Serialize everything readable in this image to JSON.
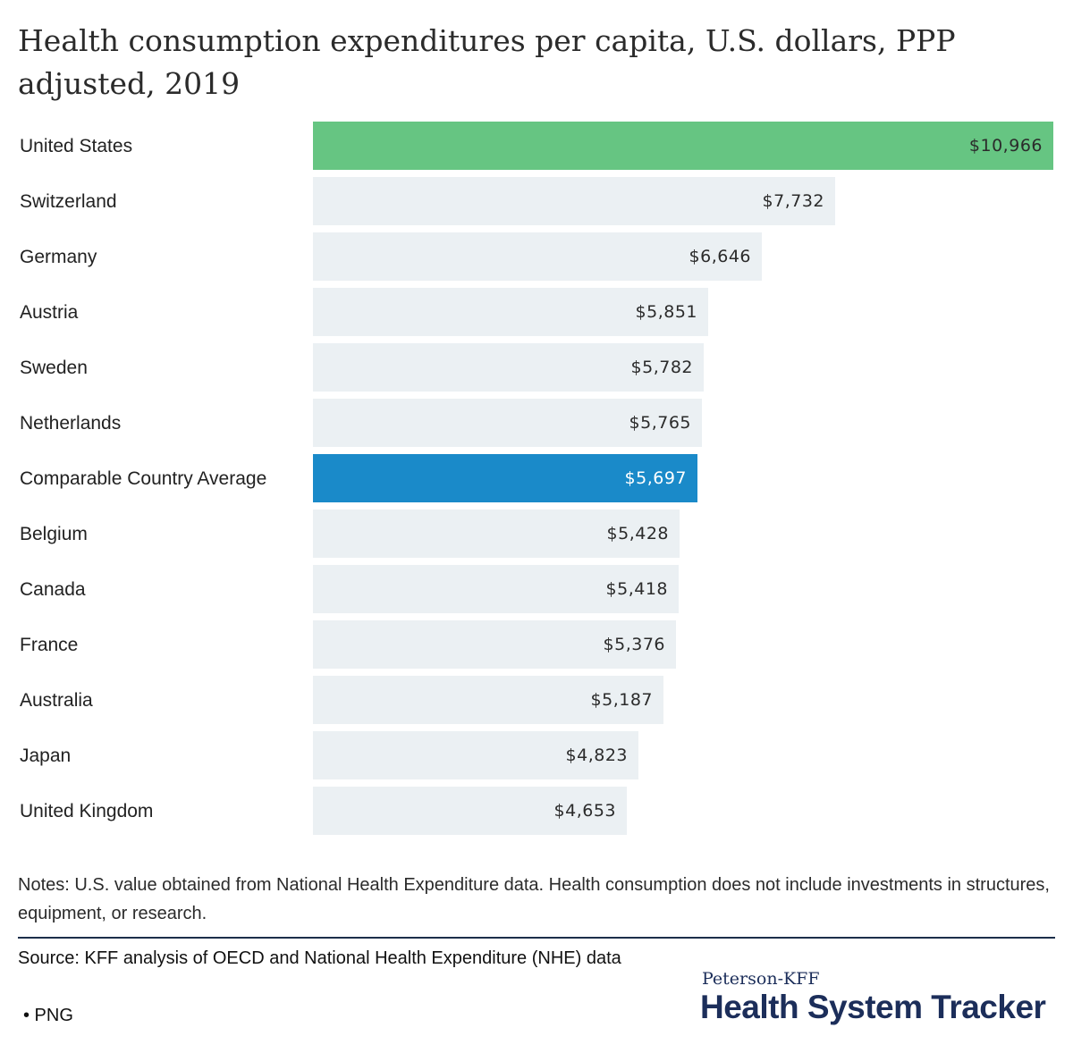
{
  "chart_data": {
    "type": "bar",
    "orientation": "horizontal",
    "title": "Health consumption expenditures per capita, U.S. dollars, PPP adjusted, 2019",
    "categories": [
      "United States",
      "Switzerland",
      "Germany",
      "Austria",
      "Sweden",
      "Netherlands",
      "Comparable Country Average",
      "Belgium",
      "Canada",
      "France",
      "Australia",
      "Japan",
      "United Kingdom"
    ],
    "values": [
      10966,
      7732,
      6646,
      5851,
      5782,
      5765,
      5697,
      5428,
      5418,
      5376,
      5187,
      4823,
      4653
    ],
    "value_labels": [
      "$10,966",
      "$7,732",
      "$6,646",
      "$5,851",
      "$5,782",
      "$5,765",
      "$5,697",
      "$5,428",
      "$5,418",
      "$5,376",
      "$5,187",
      "$4,823",
      "$4,653"
    ],
    "xlim": [
      0,
      10966
    ],
    "grid": false,
    "colors": {
      "default": "#ebf0f3",
      "highlight_us": "#66c582",
      "highlight_average": "#1a8ac9"
    },
    "highlight": {
      "United States": "highlight_us",
      "Comparable Country Average": "highlight_average"
    }
  },
  "notes": "Notes: U.S. value obtained from National Health Expenditure data. Health consumption does not include investments in structures, equipment, or research.",
  "source": "Source: KFF analysis of OECD and National Health Expenditure (NHE) data",
  "download_link": "• PNG",
  "brand": {
    "top": "Peterson-KFF",
    "main": "Health System Tracker",
    "color": "#1c2e5a"
  }
}
